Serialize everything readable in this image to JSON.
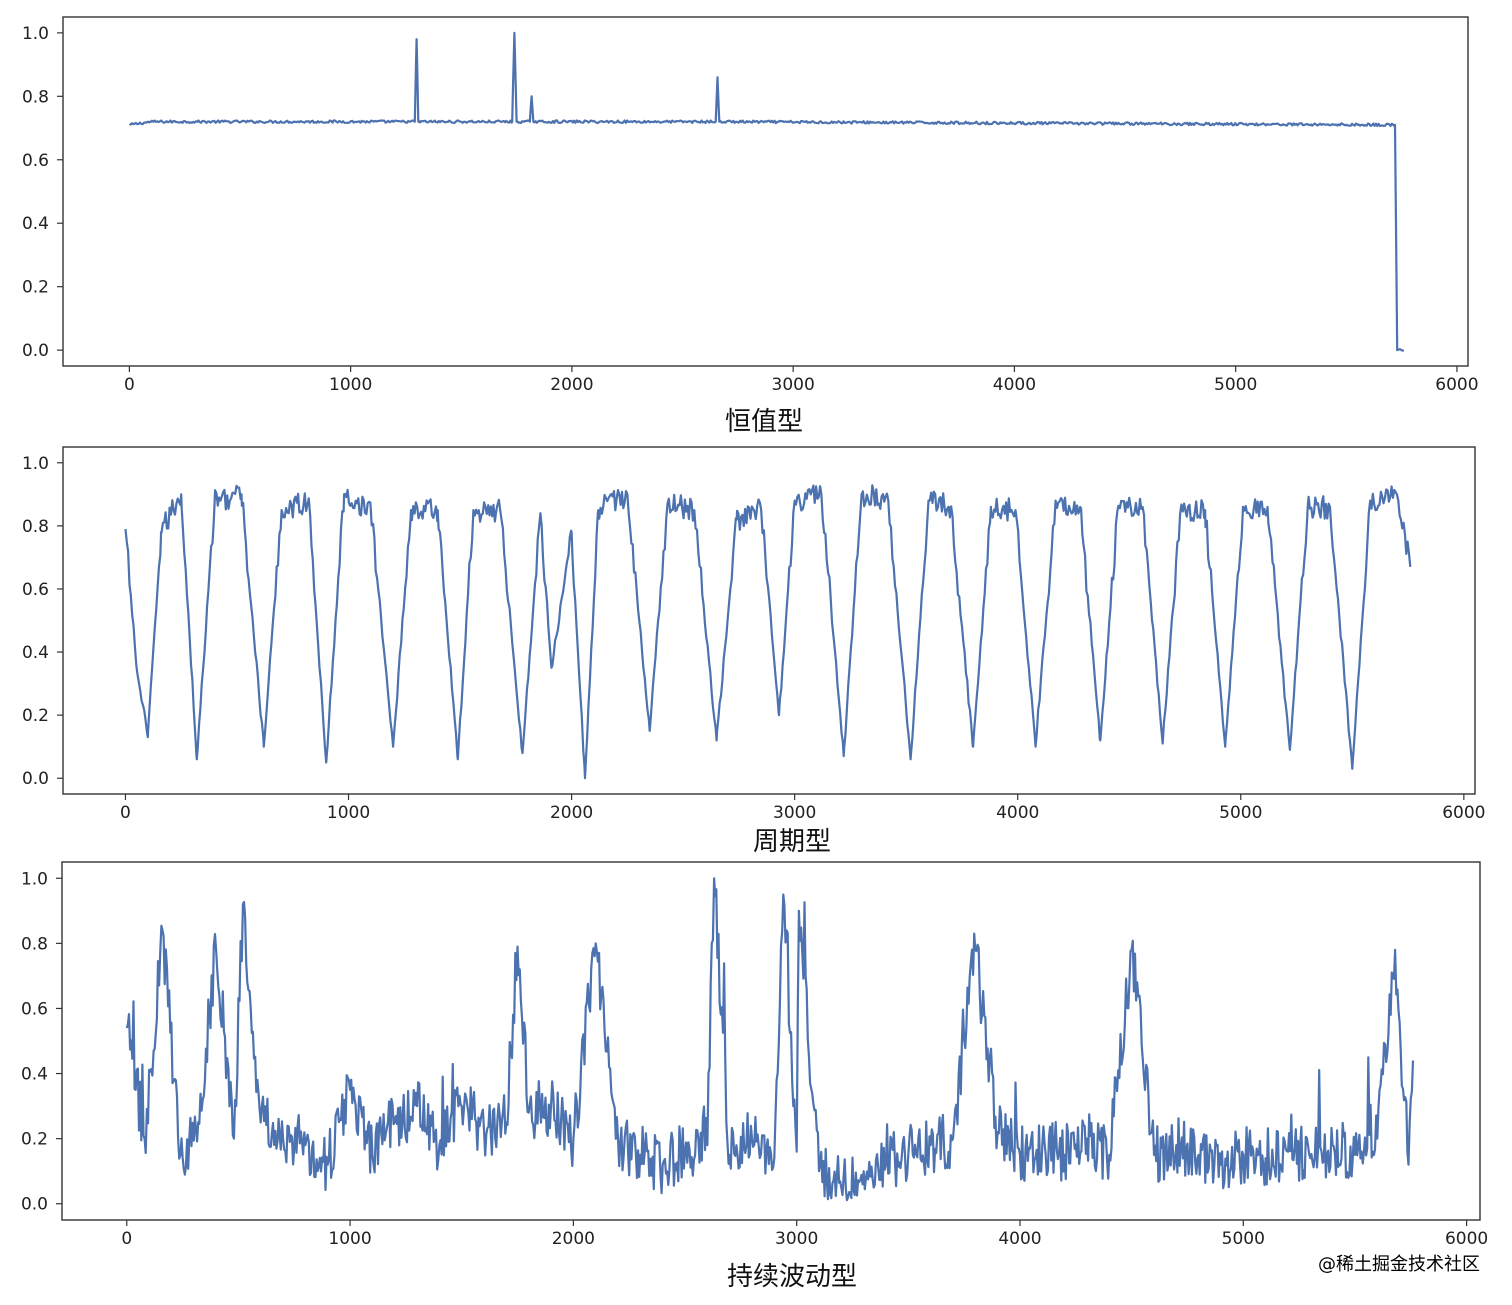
{
  "watermark": "@稀土掘金技术社区",
  "colors": {
    "series": "#4c72b0"
  },
  "chart_data": [
    {
      "type": "line",
      "xlabel": "恒值型",
      "ylabel": "",
      "xlim": [
        -300,
        6050
      ],
      "ylim": [
        -0.05,
        1.05
      ],
      "xticks": [
        0,
        1000,
        2000,
        3000,
        4000,
        5000,
        6000
      ],
      "yticks": [
        0.0,
        0.2,
        0.4,
        0.6,
        0.8,
        1.0
      ],
      "grid": false,
      "pattern": "constant",
      "series": [
        {
          "x": [
            0,
            100,
            1290,
            1298,
            1306,
            1730,
            1740,
            1750,
            1810,
            1818,
            1826,
            2650,
            2658,
            2666,
            5720,
            5730,
            5760
          ],
          "y": [
            0.71,
            0.72,
            0.72,
            0.98,
            0.72,
            0.72,
            1.0,
            0.72,
            0.72,
            0.8,
            0.72,
            0.72,
            0.86,
            0.72,
            0.71,
            0.0,
            0.0
          ]
        }
      ]
    },
    {
      "type": "line",
      "xlabel": "周期型",
      "ylabel": "",
      "xlim": [
        -280,
        6050
      ],
      "ylim": [
        -0.05,
        1.05
      ],
      "xticks": [
        0,
        1000,
        2000,
        3000,
        4000,
        5000,
        6000
      ],
      "yticks": [
        0.0,
        0.2,
        0.4,
        0.6,
        0.8,
        1.0
      ],
      "grid": false,
      "pattern": "periodic",
      "series": [
        {
          "x": [
            0,
            50,
            100,
            160,
            250,
            320,
            400,
            520,
            620,
            700,
            820,
            900,
            980,
            1100,
            1200,
            1280,
            1400,
            1490,
            1560,
            1680,
            1780,
            1860,
            1910,
            2000,
            2060,
            2120,
            2250,
            2350,
            2430,
            2550,
            2650,
            2740,
            2850,
            2930,
            3000,
            3120,
            3220,
            3300,
            3420,
            3520,
            3600,
            3700,
            3800,
            3880,
            3990,
            4080,
            4170,
            4280,
            4370,
            4450,
            4560,
            4650,
            4730,
            4840,
            4930,
            5010,
            5120,
            5220,
            5300,
            5400,
            5500,
            5580,
            5700,
            5760
          ],
          "y": [
            0.79,
            0.35,
            0.13,
            0.78,
            0.9,
            0.06,
            0.88,
            0.9,
            0.1,
            0.85,
            0.88,
            0.05,
            0.9,
            0.85,
            0.1,
            0.85,
            0.85,
            0.06,
            0.85,
            0.85,
            0.08,
            0.84,
            0.35,
            0.78,
            0.0,
            0.85,
            0.9,
            0.15,
            0.87,
            0.85,
            0.12,
            0.82,
            0.85,
            0.2,
            0.88,
            0.9,
            0.07,
            0.9,
            0.88,
            0.06,
            0.88,
            0.86,
            0.1,
            0.86,
            0.85,
            0.1,
            0.88,
            0.86,
            0.12,
            0.86,
            0.86,
            0.11,
            0.85,
            0.85,
            0.1,
            0.86,
            0.86,
            0.09,
            0.86,
            0.86,
            0.03,
            0.88,
            0.9,
            0.67
          ]
        }
      ]
    },
    {
      "type": "line",
      "xlabel": "持续波动型",
      "ylabel": "",
      "xlim": [
        -290,
        6060
      ],
      "ylim": [
        -0.05,
        1.05
      ],
      "xticks": [
        0,
        1000,
        2000,
        3000,
        4000,
        5000,
        6000
      ],
      "yticks": [
        0.0,
        0.2,
        0.4,
        0.6,
        0.8,
        1.0
      ],
      "grid": false,
      "pattern": "fluctuating",
      "series": [
        {
          "x": [
            0,
            80,
            160,
            240,
            320,
            400,
            480,
            520,
            600,
            700,
            800,
            900,
            1000,
            1100,
            1200,
            1300,
            1400,
            1500,
            1600,
            1700,
            1750,
            1800,
            1900,
            2000,
            2100,
            2200,
            2300,
            2400,
            2500,
            2600,
            2630,
            2700,
            2800,
            2900,
            2940,
            3000,
            3010,
            3100,
            3200,
            3300,
            3400,
            3500,
            3600,
            3700,
            3800,
            3900,
            4000,
            4100,
            4200,
            4300,
            4400,
            4500,
            4600,
            4700,
            4800,
            4900,
            5000,
            5100,
            5200,
            5300,
            5400,
            5500,
            5600,
            5680,
            5740,
            5760
          ],
          "y": [
            0.54,
            0.2,
            0.84,
            0.15,
            0.25,
            0.78,
            0.2,
            0.92,
            0.25,
            0.2,
            0.18,
            0.12,
            0.35,
            0.15,
            0.25,
            0.3,
            0.18,
            0.3,
            0.22,
            0.25,
            0.79,
            0.28,
            0.3,
            0.2,
            0.8,
            0.2,
            0.15,
            0.12,
            0.16,
            0.18,
            1.0,
            0.15,
            0.2,
            0.14,
            0.95,
            0.16,
            0.9,
            0.1,
            0.05,
            0.1,
            0.12,
            0.15,
            0.18,
            0.2,
            0.78,
            0.22,
            0.15,
            0.18,
            0.15,
            0.2,
            0.15,
            0.78,
            0.15,
            0.18,
            0.15,
            0.12,
            0.15,
            0.14,
            0.16,
            0.14,
            0.18,
            0.15,
            0.2,
            0.78,
            0.12,
            0.44
          ]
        }
      ]
    }
  ]
}
